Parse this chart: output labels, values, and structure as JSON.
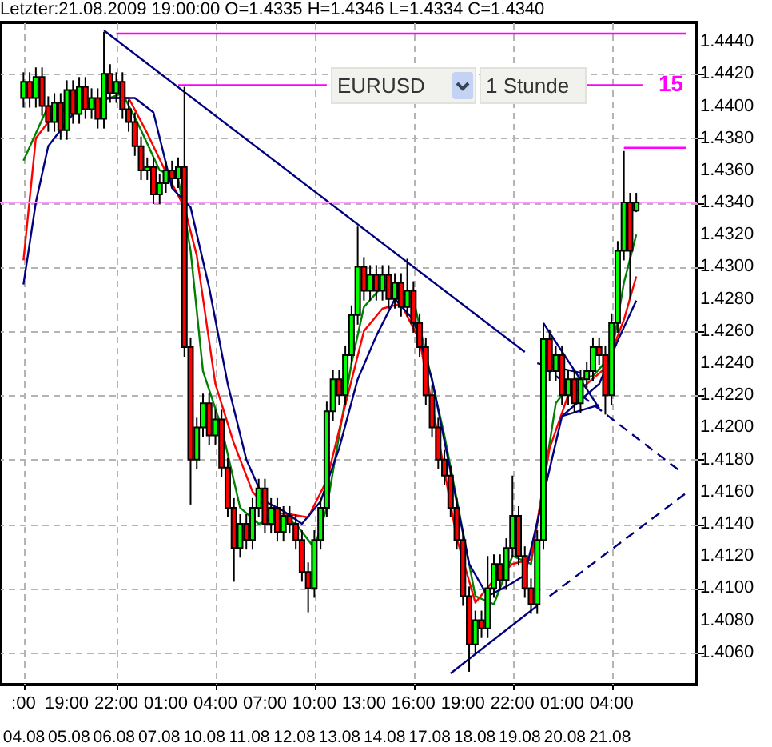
{
  "chart_data": {
    "type": "candlestick",
    "title": "Letzter:21.08.2009 19:00:00 O=1.4335 H=1.4346 L=1.4334 C=1.4340",
    "categories": [
      ":00",
      null,
      null,
      null,
      null,
      null,
      null,
      "19:00",
      null,
      null,
      null,
      null,
      null,
      null,
      null,
      "22:00",
      null,
      null,
      null,
      null,
      null,
      null,
      null,
      "01:00",
      null,
      null,
      null,
      null,
      null,
      null,
      null,
      "04:00",
      null,
      null,
      null,
      null,
      null,
      null,
      null,
      "07:00",
      null,
      null,
      null,
      null,
      null,
      null,
      null,
      "10:00",
      null,
      null,
      null,
      null,
      null,
      null,
      null,
      "13:00",
      null,
      null,
      null,
      null,
      null,
      null,
      null,
      "16:00",
      null,
      null,
      null,
      null,
      null,
      null,
      null,
      "19:00",
      null,
      null,
      null,
      null,
      null,
      null,
      null,
      "22:00",
      null,
      null,
      null,
      null,
      null,
      null,
      null,
      "01:00",
      null,
      null,
      null,
      null,
      null,
      null,
      null,
      "04:00",
      null,
      null,
      null,
      null,
      null,
      null,
      null,
      null,
      null,
      null,
      null,
      null
    ],
    "ohlc": [
      [
        1.4405,
        1.4421,
        1.4399,
        1.4415
      ],
      [
        1.4415,
        1.4421,
        1.4399,
        1.4405
      ],
      [
        1.4405,
        1.4424,
        1.4399,
        1.4418
      ],
      [
        1.4418,
        1.4424,
        1.4394,
        1.44
      ],
      [
        1.44,
        1.4406,
        1.4384,
        1.439
      ],
      [
        1.439,
        1.4408,
        1.4384,
        1.4402
      ],
      [
        1.4402,
        1.4408,
        1.4379,
        1.4385
      ],
      [
        1.4385,
        1.4416,
        1.4379,
        1.441
      ],
      [
        1.441,
        1.4416,
        1.4389,
        1.4395
      ],
      [
        1.4395,
        1.4418,
        1.4389,
        1.4412
      ],
      [
        1.4412,
        1.4418,
        1.4392,
        1.4398
      ],
      [
        1.4398,
        1.4411,
        1.4392,
        1.4405
      ],
      [
        1.4405,
        1.4411,
        1.4386,
        1.4392
      ],
      [
        1.4392,
        1.4446,
        1.4386,
        1.442
      ],
      [
        1.442,
        1.4426,
        1.4402,
        1.4408
      ],
      [
        1.4408,
        1.4421,
        1.4402,
        1.4415
      ],
      [
        1.4415,
        1.4421,
        1.4392,
        1.4398
      ],
      [
        1.4398,
        1.4404,
        1.4384,
        1.439
      ],
      [
        1.439,
        1.4396,
        1.4369,
        1.4375
      ],
      [
        1.4375,
        1.4381,
        1.4354,
        1.436
      ],
      [
        1.436,
        1.4368,
        1.4354,
        1.4362
      ],
      [
        1.4362,
        1.4368,
        1.4339,
        1.4345
      ],
      [
        1.4345,
        1.4358,
        1.4339,
        1.4352
      ],
      [
        1.4352,
        1.4366,
        1.4346,
        1.436
      ],
      [
        1.436,
        1.4366,
        1.4349,
        1.4355
      ],
      [
        1.4355,
        1.4368,
        1.4349,
        1.4362
      ],
      [
        1.4362,
        1.4412,
        1.4244,
        1.425
      ],
      [
        1.425,
        1.4256,
        1.4152,
        1.418
      ],
      [
        1.418,
        1.4206,
        1.4174,
        1.42
      ],
      [
        1.42,
        1.4221,
        1.4194,
        1.4215
      ],
      [
        1.4215,
        1.4221,
        1.4189,
        1.4195
      ],
      [
        1.4195,
        1.4211,
        1.4189,
        1.4205
      ],
      [
        1.4205,
        1.4211,
        1.4169,
        1.4175
      ],
      [
        1.4175,
        1.4181,
        1.4144,
        1.415
      ],
      [
        1.415,
        1.4156,
        1.4104,
        1.4125
      ],
      [
        1.4125,
        1.4146,
        1.4119,
        1.414
      ],
      [
        1.414,
        1.4146,
        1.4124,
        1.413
      ],
      [
        1.413,
        1.4156,
        1.4124,
        1.415
      ],
      [
        1.415,
        1.4168,
        1.4144,
        1.4162
      ],
      [
        1.4162,
        1.4168,
        1.4134,
        1.414
      ],
      [
        1.414,
        1.4156,
        1.4134,
        1.415
      ],
      [
        1.415,
        1.4156,
        1.4129,
        1.4135
      ],
      [
        1.4135,
        1.4151,
        1.4129,
        1.4145
      ],
      [
        1.4145,
        1.4151,
        1.4134,
        1.414
      ],
      [
        1.414,
        1.4146,
        1.4124,
        1.413
      ],
      [
        1.413,
        1.4136,
        1.4104,
        1.411
      ],
      [
        1.411,
        1.4116,
        1.4085,
        1.41
      ],
      [
        1.41,
        1.4136,
        1.4094,
        1.413
      ],
      [
        1.413,
        1.4156,
        1.4124,
        1.415
      ],
      [
        1.415,
        1.4216,
        1.4144,
        1.421
      ],
      [
        1.421,
        1.4236,
        1.4204,
        1.423
      ],
      [
        1.423,
        1.4236,
        1.4214,
        1.422
      ],
      [
        1.422,
        1.4251,
        1.4214,
        1.4245
      ],
      [
        1.4245,
        1.4276,
        1.4239,
        1.427
      ],
      [
        1.427,
        1.4325,
        1.4264,
        1.43
      ],
      [
        1.43,
        1.4306,
        1.4279,
        1.4285
      ],
      [
        1.4285,
        1.4301,
        1.4279,
        1.4295
      ],
      [
        1.4295,
        1.4301,
        1.4279,
        1.4285
      ],
      [
        1.4285,
        1.4301,
        1.4279,
        1.4295
      ],
      [
        1.4295,
        1.4301,
        1.4274,
        1.428
      ],
      [
        1.428,
        1.4296,
        1.4274,
        1.429
      ],
      [
        1.429,
        1.4296,
        1.4269,
        1.4275
      ],
      [
        1.4275,
        1.4305,
        1.4269,
        1.4285
      ],
      [
        1.4285,
        1.4291,
        1.4259,
        1.4265
      ],
      [
        1.4265,
        1.4271,
        1.4244,
        1.425
      ],
      [
        1.425,
        1.4256,
        1.4214,
        1.422
      ],
      [
        1.422,
        1.4226,
        1.4194,
        1.42
      ],
      [
        1.42,
        1.4206,
        1.4174,
        1.418
      ],
      [
        1.418,
        1.4186,
        1.4164,
        1.417
      ],
      [
        1.417,
        1.4176,
        1.4144,
        1.415
      ],
      [
        1.415,
        1.4156,
        1.4124,
        1.413
      ],
      [
        1.413,
        1.4136,
        1.4089,
        1.4095
      ],
      [
        1.4095,
        1.4101,
        1.4048,
        1.4065
      ],
      [
        1.4065,
        1.4086,
        1.4059,
        1.408
      ],
      [
        1.408,
        1.4086,
        1.4069,
        1.4075
      ],
      [
        1.4075,
        1.412,
        1.4069,
        1.41
      ],
      [
        1.41,
        1.4121,
        1.4094,
        1.4115
      ],
      [
        1.4115,
        1.4121,
        1.4099,
        1.4105
      ],
      [
        1.4105,
        1.4131,
        1.4099,
        1.4125
      ],
      [
        1.4125,
        1.417,
        1.4119,
        1.4145
      ],
      [
        1.4145,
        1.4151,
        1.4114,
        1.412
      ],
      [
        1.412,
        1.4126,
        1.4094,
        1.41
      ],
      [
        1.41,
        1.4106,
        1.4084,
        1.409
      ],
      [
        1.409,
        1.4136,
        1.4084,
        1.413
      ],
      [
        1.413,
        1.4265,
        1.4124,
        1.4255
      ],
      [
        1.4255,
        1.4261,
        1.4229,
        1.4235
      ],
      [
        1.4235,
        1.4251,
        1.4229,
        1.4245
      ],
      [
        1.4245,
        1.4251,
        1.4214,
        1.422
      ],
      [
        1.422,
        1.4236,
        1.4214,
        1.423
      ],
      [
        1.423,
        1.4236,
        1.4209,
        1.4215
      ],
      [
        1.4215,
        1.4236,
        1.4209,
        1.423
      ],
      [
        1.423,
        1.4241,
        1.4224,
        1.4235
      ],
      [
        1.4235,
        1.4256,
        1.4229,
        1.425
      ],
      [
        1.425,
        1.4256,
        1.4239,
        1.4245
      ],
      [
        1.4245,
        1.4251,
        1.4208,
        1.422
      ],
      [
        1.422,
        1.4271,
        1.4214,
        1.4265
      ],
      [
        1.4265,
        1.4316,
        1.4259,
        1.431
      ],
      [
        1.431,
        1.4372,
        1.4304,
        1.434
      ],
      [
        1.434,
        1.4346,
        1.428,
        1.431
      ],
      [
        1.4335,
        1.4346,
        1.4334,
        1.434
      ],
      null,
      null,
      null,
      null,
      null,
      null,
      null,
      null
    ],
    "colors": [
      "#00ff00",
      "#ff0000",
      "#00ff00",
      "#ff0000",
      "#ff0000",
      "#00ff00",
      "#ff0000",
      "#00ff00",
      "#ff0000",
      "#00ff00",
      "#ff0000",
      "#00ff00",
      "#ff0000",
      "#00ff00",
      "#ff0000",
      "#00ff00",
      "#ff0000",
      "#ff0000",
      "#ff0000",
      "#ff0000",
      "#00ff00",
      "#ff0000",
      "#00ff00",
      "#00ff00",
      "#ff0000",
      "#00ff00",
      "#ff0000",
      "#ff0000",
      "#00ff00",
      "#00ff00",
      "#ff0000",
      "#00ff00",
      "#ff0000",
      "#ff0000",
      "#ff0000",
      "#00ff00",
      "#ff0000",
      "#00ff00",
      "#00ff00",
      "#ff0000",
      "#00ff00",
      "#ff0000",
      "#00ff00",
      "#ff0000",
      "#ff0000",
      "#ff0000",
      "#ff0000",
      "#00ff00",
      "#00ff00",
      "#00ff00",
      "#00ff00",
      "#ff0000",
      "#00ff00",
      "#00ff00",
      "#00ff00",
      "#ff0000",
      "#00ff00",
      "#ff0000",
      "#00ff00",
      "#ff0000",
      "#00ff00",
      "#ff0000",
      "#00ff00",
      "#ff0000",
      "#ff0000",
      "#ff0000",
      "#ff0000",
      "#ff0000",
      "#ff0000",
      "#ff0000",
      "#ff0000",
      "#ff0000",
      "#ff0000",
      "#00ff00",
      "#ff0000",
      "#00ff00",
      "#00ff00",
      "#ff0000",
      "#00ff00",
      "#00ff00",
      "#ff0000",
      "#ff0000",
      "#ff0000",
      "#00ff00",
      "#00ff00",
      "#ff0000",
      "#00ff00",
      "#ff0000",
      "#00ff00",
      "#ff0000",
      "#00ff00",
      "#00ff00",
      "#00ff00",
      "#ff0000",
      "#ff0000",
      "#00ff00",
      "#00ff00",
      "#00ff00",
      "#ff0000",
      "#00ff00",
      null,
      null,
      null,
      null,
      null,
      null,
      null,
      null
    ],
    "series": [
      {
        "type": "line",
        "color": "#008000",
        "values": [
          1.4366,
          null,
          null,
          null,
          1.44,
          null,
          null,
          null,
          1.4398,
          null,
          null,
          null,
          1.4402,
          null,
          null,
          null,
          1.4408,
          null,
          null,
          1.4385,
          null,
          null,
          1.436,
          null,
          null,
          1.4355,
          null,
          1.431,
          null,
          1.4235,
          null,
          null,
          1.42,
          null,
          null,
          1.415,
          null,
          null,
          1.414,
          null,
          null,
          1.4145,
          null,
          null,
          1.414,
          null,
          null,
          1.4125,
          null,
          1.415,
          null,
          1.4195,
          null,
          1.424,
          null,
          1.4275,
          null,
          null,
          1.4288,
          null,
          null,
          1.4285,
          null,
          1.428,
          null,
          null,
          null,
          null,
          1.4195,
          null,
          null,
          1.4135,
          null,
          1.4095,
          null,
          null,
          1.409,
          null,
          null,
          1.412,
          null,
          null,
          1.4115,
          null,
          null,
          null,
          1.4215,
          null,
          null,
          1.423,
          null,
          null,
          1.4232,
          null,
          null,
          1.4245,
          null,
          1.429,
          null,
          1.432,
          null,
          null,
          null,
          null,
          null,
          null,
          null,
          null
        ]
      },
      {
        "type": "line",
        "color": "#ff0000",
        "values": [
          1.4304,
          null,
          1.438,
          null,
          null,
          1.4395,
          null,
          null,
          null,
          1.44,
          null,
          null,
          null,
          1.4405,
          null,
          null,
          null,
          1.4405,
          null,
          null,
          1.4383,
          null,
          null,
          1.4359,
          null,
          null,
          1.4337,
          null,
          1.4307,
          null,
          null,
          1.4227,
          null,
          null,
          1.419,
          null,
          null,
          1.416,
          null,
          null,
          1.4147,
          null,
          null,
          1.4146,
          null,
          null,
          1.4144,
          null,
          null,
          1.4167,
          null,
          null,
          1.4214,
          null,
          null,
          1.426,
          null,
          null,
          1.4274,
          null,
          null,
          1.4277,
          null,
          null,
          1.4254,
          null,
          null,
          1.4194,
          null,
          null,
          1.4131,
          null,
          null,
          1.4091,
          null,
          null,
          1.4105,
          null,
          null,
          1.4115,
          null,
          null,
          1.4118,
          null,
          null,
          1.4187,
          null,
          null,
          1.422,
          null,
          null,
          1.4227,
          null,
          null,
          1.4237,
          null,
          null,
          1.4267,
          null,
          1.4294,
          null,
          null,
          null,
          null,
          null,
          null,
          null,
          null
        ]
      },
      {
        "type": "line",
        "color": "#000080",
        "values": [
          1.4289,
          null,
          1.434,
          null,
          1.4375,
          null,
          null,
          null,
          1.4395,
          null,
          null,
          null,
          null,
          1.4405,
          null,
          null,
          null,
          null,
          1.4405,
          null,
          null,
          1.4396,
          null,
          null,
          1.4349,
          null,
          null,
          1.4337,
          null,
          null,
          1.4287,
          null,
          null,
          1.4227,
          null,
          null,
          1.418,
          null,
          null,
          1.4154,
          null,
          null,
          1.4148,
          null,
          null,
          1.414,
          null,
          null,
          1.4154,
          null,
          null,
          1.4187,
          null,
          null,
          1.423,
          null,
          null,
          1.4257,
          null,
          null,
          1.428,
          null,
          null,
          1.4267,
          null,
          null,
          1.423,
          null,
          null,
          null,
          null,
          null,
          1.4115,
          null,
          null,
          1.4095,
          null,
          null,
          1.4101,
          null,
          null,
          1.4108,
          null,
          null,
          null,
          null,
          null,
          1.4207,
          null,
          null,
          1.4217,
          null,
          null,
          1.4227,
          null,
          null,
          1.4254,
          null,
          null,
          1.4279,
          null,
          null,
          null,
          null,
          null,
          null,
          null,
          null
        ]
      },
      {
        "type": "line",
        "color": "#000080",
        "values": [
          null,
          null,
          null,
          null,
          null,
          null,
          null,
          null,
          null,
          null,
          null,
          null,
          null,
          1.4447,
          null,
          null,
          null,
          null,
          null,
          null,
          null,
          null,
          null,
          null,
          null,
          null,
          null,
          null,
          null,
          null,
          null,
          null,
          null,
          null,
          null,
          null,
          null,
          null,
          null,
          null,
          null,
          null,
          null,
          null,
          null,
          null,
          null,
          null,
          null,
          null,
          null,
          null,
          null,
          null,
          null,
          null,
          null,
          null,
          null,
          null,
          null,
          null,
          null,
          null,
          null,
          null,
          null,
          null,
          null,
          null,
          null,
          null,
          null,
          null,
          null,
          null,
          null,
          null,
          null,
          null,
          null,
          1.4247,
          null,
          null,
          null,
          null,
          null,
          null,
          null,
          null,
          null,
          null,
          null,
          null,
          null,
          null,
          null,
          null,
          null,
          null,
          null,
          null,
          null,
          null,
          null,
          null,
          null,
          null
        ]
      },
      {
        "type": "line",
        "color": "#000080",
        "line_style": "dashed",
        "values": [
          null,
          null,
          null,
          null,
          null,
          null,
          null,
          null,
          null,
          null,
          null,
          null,
          null,
          null,
          null,
          null,
          null,
          null,
          null,
          null,
          null,
          null,
          null,
          null,
          null,
          null,
          null,
          null,
          null,
          null,
          null,
          null,
          null,
          null,
          null,
          null,
          null,
          null,
          null,
          null,
          null,
          null,
          null,
          null,
          null,
          null,
          null,
          null,
          null,
          null,
          null,
          null,
          null,
          null,
          null,
          null,
          null,
          null,
          null,
          null,
          null,
          null,
          null,
          null,
          null,
          null,
          null,
          null,
          null,
          null,
          null,
          null,
          null,
          null,
          null,
          null,
          null,
          null,
          null,
          null,
          null,
          null,
          null,
          null,
          1.4238,
          null,
          null,
          null,
          null,
          null,
          null,
          null,
          null,
          null,
          null,
          null,
          null,
          null,
          null,
          null,
          null,
          null,
          null,
          null,
          null,
          null,
          1.4173,
          null
        ]
      },
      {
        "type": "line",
        "color": "#000080",
        "values": [
          null,
          null,
          null,
          null,
          null,
          null,
          null,
          null,
          null,
          null,
          null,
          null,
          null,
          null,
          null,
          null,
          null,
          null,
          null,
          null,
          null,
          null,
          null,
          null,
          null,
          null,
          null,
          null,
          null,
          null,
          null,
          null,
          null,
          null,
          null,
          null,
          null,
          null,
          null,
          null,
          null,
          null,
          null,
          null,
          null,
          null,
          null,
          null,
          null,
          null,
          null,
          null,
          null,
          null,
          null,
          null,
          null,
          null,
          null,
          null,
          null,
          null,
          null,
          null,
          null,
          null,
          null,
          null,
          null,
          1.4047,
          null,
          null,
          null,
          null,
          null,
          null,
          null,
          null,
          null,
          null,
          null,
          null,
          null,
          1.4089,
          null,
          null,
          null,
          null,
          null,
          null,
          null,
          null,
          null,
          null,
          null,
          null,
          null,
          null,
          null,
          null,
          null,
          null,
          null,
          null,
          null,
          null,
          null,
          null
        ]
      },
      {
        "type": "line",
        "color": "#000080",
        "line_style": "dashed",
        "values": [
          null,
          null,
          null,
          null,
          null,
          null,
          null,
          null,
          null,
          null,
          null,
          null,
          null,
          null,
          null,
          null,
          null,
          null,
          null,
          null,
          null,
          null,
          null,
          null,
          null,
          null,
          null,
          null,
          null,
          null,
          null,
          null,
          null,
          null,
          null,
          null,
          null,
          null,
          null,
          null,
          null,
          null,
          null,
          null,
          null,
          null,
          null,
          null,
          null,
          null,
          null,
          null,
          null,
          null,
          null,
          null,
          null,
          null,
          null,
          null,
          null,
          null,
          null,
          null,
          null,
          null,
          null,
          null,
          null,
          null,
          null,
          null,
          null,
          null,
          null,
          null,
          null,
          null,
          null,
          null,
          null,
          null,
          null,
          null,
          null,
          1.4095,
          null,
          null,
          null,
          null,
          null,
          null,
          null,
          null,
          null,
          null,
          null,
          null,
          null,
          null,
          null,
          null,
          null,
          null,
          null,
          null,
          null,
          1.4159
        ]
      },
      {
        "type": "line",
        "color": "#000080",
        "values": [
          null,
          null,
          null,
          null,
          null,
          null,
          null,
          null,
          null,
          null,
          null,
          null,
          null,
          null,
          null,
          null,
          null,
          null,
          null,
          null,
          null,
          null,
          null,
          null,
          null,
          null,
          null,
          null,
          null,
          null,
          null,
          null,
          null,
          null,
          null,
          null,
          null,
          null,
          null,
          null,
          null,
          null,
          null,
          null,
          null,
          null,
          null,
          null,
          null,
          null,
          null,
          null,
          null,
          null,
          null,
          null,
          null,
          null,
          null,
          null,
          null,
          null,
          null,
          null,
          null,
          null,
          null,
          null,
          null,
          null,
          null,
          null,
          null,
          null,
          null,
          null,
          null,
          null,
          null,
          null,
          null,
          null,
          null,
          null,
          1.4265,
          null,
          null,
          null,
          null,
          null,
          null,
          null,
          null,
          1.4212,
          null,
          null,
          null,
          null,
          null,
          null,
          null,
          null,
          null,
          null,
          null,
          null,
          null,
          null
        ]
      },
      {
        "type": "line",
        "color": "#000080",
        "values": [
          null,
          null,
          null,
          null,
          null,
          null,
          null,
          null,
          null,
          null,
          null,
          null,
          null,
          null,
          null,
          null,
          null,
          null,
          null,
          null,
          null,
          null,
          null,
          null,
          null,
          null,
          null,
          null,
          null,
          null,
          null,
          null,
          null,
          null,
          null,
          null,
          null,
          null,
          null,
          null,
          null,
          null,
          null,
          null,
          null,
          null,
          null,
          null,
          null,
          null,
          null,
          null,
          null,
          null,
          null,
          null,
          null,
          null,
          null,
          null,
          null,
          null,
          null,
          null,
          null,
          null,
          null,
          null,
          null,
          null,
          null,
          null,
          null,
          null,
          null,
          null,
          null,
          null,
          null,
          null,
          null,
          null,
          null,
          1.424,
          null,
          null,
          null,
          null,
          null,
          null,
          1.4234,
          null,
          null,
          null,
          null,
          null,
          null,
          null,
          null,
          null,
          null,
          null,
          null,
          null,
          null,
          null,
          null,
          null
        ]
      },
      {
        "type": "line",
        "color": "#000080",
        "values": [
          null,
          null,
          null,
          null,
          null,
          null,
          null,
          null,
          null,
          null,
          null,
          null,
          null,
          null,
          null,
          null,
          null,
          null,
          null,
          null,
          null,
          null,
          null,
          null,
          null,
          null,
          null,
          null,
          null,
          null,
          null,
          null,
          null,
          null,
          null,
          null,
          null,
          null,
          null,
          null,
          null,
          null,
          null,
          null,
          null,
          null,
          null,
          null,
          null,
          null,
          null,
          null,
          null,
          null,
          null,
          null,
          null,
          null,
          null,
          null,
          null,
          null,
          null,
          null,
          null,
          null,
          null,
          null,
          null,
          null,
          null,
          null,
          null,
          null,
          null,
          null,
          null,
          null,
          null,
          null,
          null,
          null,
          null,
          null,
          null,
          null,
          null,
          1.4207,
          null,
          null,
          null,
          null,
          null,
          1.4214,
          null,
          null,
          null,
          null,
          null,
          null,
          null,
          null,
          null,
          null,
          null,
          null,
          null,
          null
        ]
      },
      {
        "type": "line",
        "color": "#ff00ff",
        "values": [
          null,
          null,
          null,
          null,
          null,
          null,
          null,
          null,
          null,
          null,
          null,
          null,
          null,
          null,
          null,
          1.4445,
          null,
          null,
          null,
          null,
          null,
          null,
          null,
          null,
          null,
          null,
          null,
          null,
          null,
          null,
          null,
          null,
          null,
          null,
          null,
          null,
          null,
          null,
          null,
          null,
          null,
          null,
          null,
          null,
          null,
          null,
          null,
          null,
          null,
          null,
          null,
          null,
          null,
          null,
          null,
          null,
          null,
          null,
          null,
          null,
          null,
          null,
          null,
          null,
          null,
          null,
          null,
          null,
          null,
          null,
          null,
          null,
          null,
          null,
          null,
          null,
          null,
          null,
          null,
          null,
          null,
          null,
          null,
          null,
          null,
          null,
          null,
          null,
          null,
          null,
          null,
          null,
          null,
          null,
          null,
          null,
          null,
          null,
          null,
          null,
          null,
          null,
          null,
          null,
          null,
          null,
          null,
          1.4445
        ]
      },
      {
        "type": "line",
        "color": "#ff00ff",
        "values": [
          null,
          null,
          null,
          null,
          null,
          null,
          null,
          null,
          null,
          null,
          null,
          null,
          null,
          null,
          null,
          null,
          null,
          null,
          null,
          null,
          null,
          null,
          null,
          null,
          null,
          1.4413,
          null,
          null,
          null,
          null,
          null,
          null,
          null,
          null,
          null,
          null,
          null,
          null,
          null,
          null,
          null,
          null,
          null,
          null,
          null,
          null,
          null,
          null,
          null,
          1.4413,
          null,
          null,
          null,
          null,
          null,
          null,
          null,
          null,
          null,
          null,
          null,
          null,
          null,
          null,
          null,
          null,
          null,
          null,
          null,
          null,
          null,
          null,
          null,
          null,
          null,
          null,
          null,
          null,
          null,
          null,
          null,
          null,
          null,
          null,
          null,
          null,
          null,
          null,
          null,
          null,
          null,
          null,
          null,
          null,
          null,
          null,
          null,
          null,
          null,
          null,
          null,
          null,
          null,
          null,
          null,
          null,
          null,
          null
        ]
      },
      {
        "type": "line",
        "name": "15",
        "color": "#ff00ff",
        "values": [
          null,
          null,
          null,
          null,
          null,
          null,
          null,
          null,
          null,
          null,
          null,
          null,
          null,
          null,
          null,
          null,
          null,
          null,
          null,
          null,
          null,
          null,
          null,
          null,
          null,
          null,
          null,
          null,
          null,
          null,
          null,
          null,
          null,
          null,
          null,
          null,
          null,
          null,
          null,
          null,
          null,
          null,
          null,
          null,
          null,
          null,
          null,
          null,
          null,
          null,
          null,
          null,
          null,
          null,
          null,
          null,
          null,
          null,
          null,
          null,
          null,
          null,
          null,
          null,
          null,
          null,
          null,
          null,
          null,
          null,
          null,
          null,
          null,
          null,
          null,
          null,
          null,
          null,
          null,
          null,
          null,
          null,
          null,
          null,
          null,
          null,
          null,
          null,
          null,
          null,
          null,
          1.4413,
          null,
          null,
          null,
          null,
          null,
          null,
          null,
          null,
          1.4413,
          null,
          null,
          null,
          null,
          null,
          null,
          null
        ]
      },
      {
        "type": "line",
        "color": "#ff00ff",
        "values": [
          null,
          null,
          null,
          null,
          null,
          null,
          null,
          null,
          null,
          null,
          null,
          null,
          null,
          null,
          null,
          null,
          null,
          null,
          null,
          null,
          null,
          null,
          null,
          null,
          null,
          null,
          null,
          null,
          null,
          null,
          null,
          null,
          null,
          null,
          null,
          null,
          null,
          null,
          null,
          null,
          null,
          null,
          null,
          null,
          null,
          null,
          null,
          null,
          null,
          null,
          null,
          null,
          null,
          null,
          null,
          null,
          null,
          null,
          null,
          null,
          null,
          null,
          null,
          null,
          null,
          null,
          null,
          null,
          null,
          null,
          null,
          null,
          null,
          null,
          null,
          null,
          null,
          null,
          null,
          null,
          null,
          null,
          null,
          null,
          null,
          null,
          null,
          null,
          null,
          null,
          null,
          null,
          null,
          null,
          null,
          null,
          null,
          1.4374,
          null,
          null,
          null,
          null,
          null,
          null,
          null,
          null,
          null,
          1.4374
        ]
      }
    ],
    "ylim": [
      1.404,
      1.4452
    ],
    "yticks": [
      {
        "value": 1.406,
        "label": "1.4060"
      },
      {
        "value": 1.408,
        "label": "1.4080"
      },
      {
        "value": 1.41,
        "label": "1.4100"
      },
      {
        "value": 1.412,
        "label": "1.4120"
      },
      {
        "value": 1.414,
        "label": "1.4140"
      },
      {
        "value": 1.416,
        "label": "1.4160"
      },
      {
        "value": 1.418,
        "label": "1.4180"
      },
      {
        "value": 1.42,
        "label": "1.4200"
      },
      {
        "value": 1.422,
        "label": "1.4220"
      },
      {
        "value": 1.424,
        "label": "1.4240"
      },
      {
        "value": 1.426,
        "label": "1.4260"
      },
      {
        "value": 1.428,
        "label": "1.4280"
      },
      {
        "value": 1.43,
        "label": "1.4300"
      },
      {
        "value": 1.432,
        "label": "1.4320"
      },
      {
        "value": 1.434,
        "label": "1.4340"
      },
      {
        "value": 1.436,
        "label": "1.4360"
      },
      {
        "value": 1.438,
        "label": "1.4380"
      },
      {
        "value": 1.44,
        "label": "1.4400"
      },
      {
        "value": 1.442,
        "label": "1.4420"
      },
      {
        "value": 1.444,
        "label": "1.4440"
      }
    ],
    "grid": true,
    "ref_lines": [
      {
        "axis": "y",
        "value": 1.434,
        "color": "#ff99ff"
      }
    ],
    "annotations": [
      "EURUSD",
      "1 Stunde",
      "04.08",
      "05.08",
      "06.08",
      "07.08",
      "10.08",
      "11.08",
      "12.08",
      "13.08",
      "14.08",
      "17.08",
      "18.08",
      "19.08",
      "20.08",
      "21.08"
    ]
  }
}
